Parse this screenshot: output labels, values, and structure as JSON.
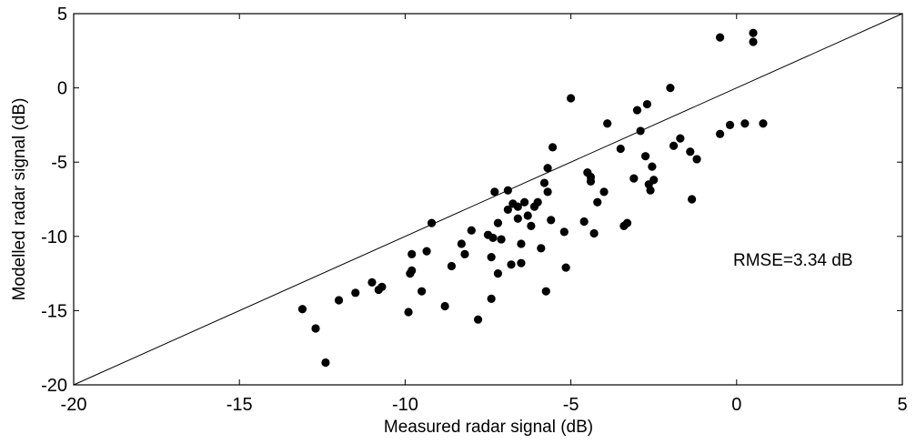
{
  "chart_data": {
    "type": "scatter",
    "title": "",
    "xlabel": "Measured radar signal (dB)",
    "ylabel": "Modelled radar signal (dB)",
    "xlim": [
      -20,
      5
    ],
    "ylim": [
      -20,
      5
    ],
    "xticks": [
      "-20",
      "-15",
      "-10",
      "-5",
      "0",
      "5"
    ],
    "yticks": [
      "-20",
      "-15",
      "-10",
      "-5",
      "0",
      "5"
    ],
    "grid": false,
    "reference_line": {
      "x": [
        -20,
        5
      ],
      "y": [
        -20,
        5
      ]
    },
    "annotation": "RMSE=3.34 dB",
    "marker_color": "#000000",
    "points": [
      [
        -13.1,
        -14.9
      ],
      [
        -12.7,
        -16.2
      ],
      [
        -12.4,
        -18.5
      ],
      [
        -12.0,
        -14.3
      ],
      [
        -11.5,
        -13.8
      ],
      [
        -11.0,
        -13.1
      ],
      [
        -10.8,
        -13.6
      ],
      [
        -10.7,
        -13.4
      ],
      [
        -9.9,
        -15.1
      ],
      [
        -9.85,
        -12.5
      ],
      [
        -9.8,
        -12.3
      ],
      [
        -9.8,
        -11.2
      ],
      [
        -9.5,
        -13.7
      ],
      [
        -9.35,
        -11.0
      ],
      [
        -9.2,
        -9.1
      ],
      [
        -8.8,
        -14.7
      ],
      [
        -8.6,
        -12.0
      ],
      [
        -8.3,
        -10.5
      ],
      [
        -8.2,
        -11.2
      ],
      [
        -8.0,
        -9.6
      ],
      [
        -7.8,
        -15.6
      ],
      [
        -7.5,
        -9.9
      ],
      [
        -7.4,
        -11.4
      ],
      [
        -7.4,
        -14.2
      ],
      [
        -7.35,
        -10.1
      ],
      [
        -7.3,
        -7.0
      ],
      [
        -7.2,
        -12.5
      ],
      [
        -7.2,
        -9.1
      ],
      [
        -7.1,
        -10.2
      ],
      [
        -6.9,
        -6.9
      ],
      [
        -6.9,
        -8.2
      ],
      [
        -6.8,
        -11.9
      ],
      [
        -6.75,
        -7.8
      ],
      [
        -6.6,
        -8.0
      ],
      [
        -6.6,
        -8.8
      ],
      [
        -6.5,
        -10.5
      ],
      [
        -6.5,
        -11.8
      ],
      [
        -6.4,
        -7.7
      ],
      [
        -6.3,
        -8.6
      ],
      [
        -6.2,
        -9.3
      ],
      [
        -6.1,
        -8.0
      ],
      [
        -6.0,
        -7.7
      ],
      [
        -5.9,
        -10.8
      ],
      [
        -5.8,
        -6.4
      ],
      [
        -5.75,
        -13.7
      ],
      [
        -5.7,
        -7.0
      ],
      [
        -5.7,
        -5.4
      ],
      [
        -5.6,
        -8.9
      ],
      [
        -5.55,
        -4.0
      ],
      [
        -5.2,
        -9.7
      ],
      [
        -5.15,
        -12.1
      ],
      [
        -5.0,
        -0.7
      ],
      [
        -4.6,
        -9.0
      ],
      [
        -4.5,
        -5.7
      ],
      [
        -4.4,
        -6.3
      ],
      [
        -4.4,
        -6.0
      ],
      [
        -4.3,
        -9.8
      ],
      [
        -4.2,
        -7.7
      ],
      [
        -4.0,
        -7.0
      ],
      [
        -3.9,
        -2.4
      ],
      [
        -3.5,
        -4.1
      ],
      [
        -3.4,
        -9.3
      ],
      [
        -3.3,
        -9.1
      ],
      [
        -3.1,
        -6.1
      ],
      [
        -3.0,
        -1.5
      ],
      [
        -2.9,
        -2.9
      ],
      [
        -2.75,
        -4.6
      ],
      [
        -2.7,
        -1.1
      ],
      [
        -2.65,
        -6.5
      ],
      [
        -2.6,
        -6.9
      ],
      [
        -2.55,
        -5.3
      ],
      [
        -2.5,
        -6.2
      ],
      [
        -2.0,
        0.0
      ],
      [
        -1.9,
        -3.9
      ],
      [
        -1.7,
        -3.4
      ],
      [
        -1.4,
        -4.3
      ],
      [
        -1.35,
        -7.5
      ],
      [
        -1.2,
        -4.8
      ],
      [
        -0.5,
        3.4
      ],
      [
        -0.5,
        -3.1
      ],
      [
        -0.2,
        -2.5
      ],
      [
        0.25,
        -2.4
      ],
      [
        0.5,
        3.7
      ],
      [
        0.5,
        3.1
      ],
      [
        0.8,
        -2.4
      ]
    ]
  }
}
